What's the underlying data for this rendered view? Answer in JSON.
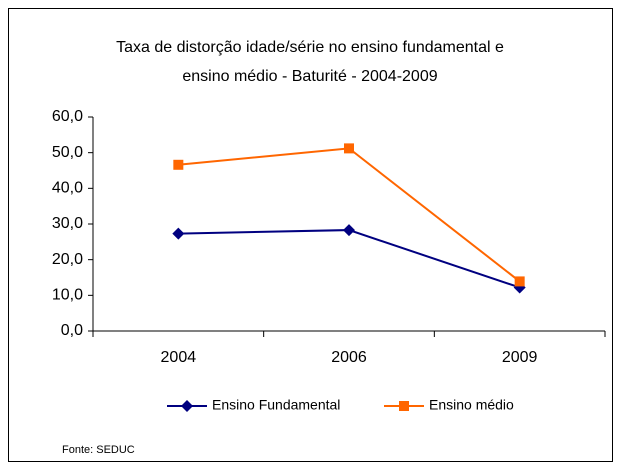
{
  "chart_data": {
    "type": "line",
    "title": [
      "Taxa de distorção idade/série no ensino fundamental e",
      "ensino médio - Baturité - 2004-2009"
    ],
    "categories": [
      "2004",
      "2006",
      "2009"
    ],
    "series": [
      {
        "name": "Ensino Fundamental",
        "color": "#000080",
        "marker": "diamond",
        "values": [
          27.3,
          28.3,
          12.2
        ]
      },
      {
        "name": "Ensino médio",
        "color": "#ff6600",
        "marker": "square",
        "values": [
          46.6,
          51.2,
          13.9
        ]
      }
    ],
    "ylim": [
      0,
      60
    ],
    "yticks": [
      {
        "value": 0,
        "label": "0,0"
      },
      {
        "value": 10,
        "label": "10,0"
      },
      {
        "value": 20,
        "label": "20,0"
      },
      {
        "value": 30,
        "label": "30,0"
      },
      {
        "value": 40,
        "label": "40,0"
      },
      {
        "value": 50,
        "label": "50,0"
      },
      {
        "value": 60,
        "label": "60,0"
      }
    ],
    "grid": false,
    "legend": "bottom",
    "source": "Fonte: SEDUC"
  }
}
